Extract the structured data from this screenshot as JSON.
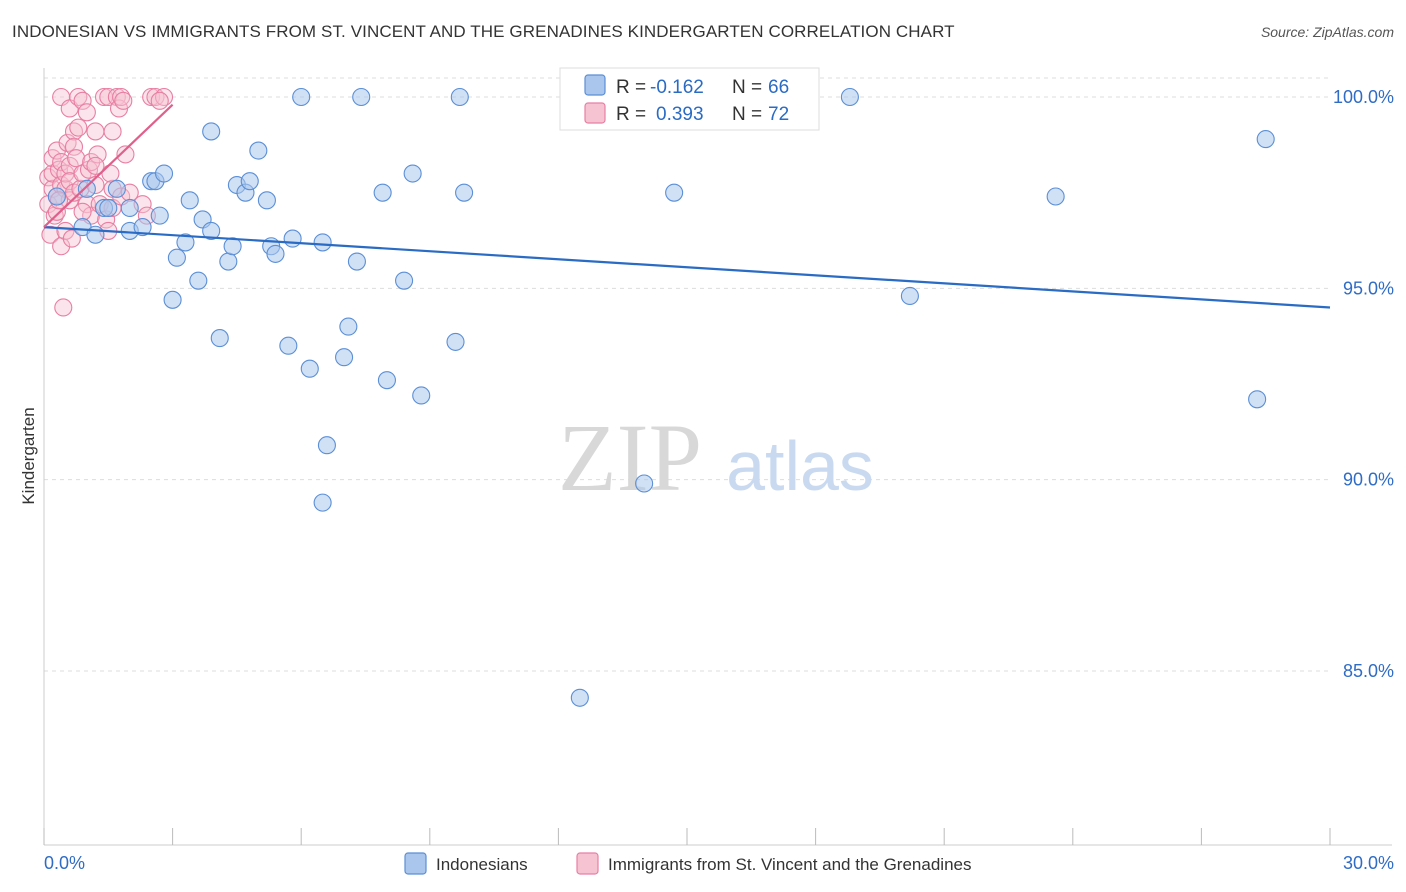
{
  "title": "INDONESIAN VS IMMIGRANTS FROM ST. VINCENT AND THE GRENADINES KINDERGARTEN CORRELATION CHART",
  "source": "Source: ZipAtlas.com",
  "watermark": {
    "zip": "ZIP",
    "atlas": "atlas"
  },
  "colors": {
    "blue": "#5b8fd6",
    "blue_fill": "#aac6ec",
    "blue_line": "#2a6bc4",
    "pink": "#e87fa3",
    "pink_fill": "#f6c3d3",
    "pink_line": "#e0608c",
    "grid": "#dddddd",
    "tick_text": "#2f6cc5"
  },
  "stats": {
    "r_label": "R =",
    "n_label": "N =",
    "rows": [
      {
        "series": "Indonesians",
        "r": "-0.162",
        "n": "66"
      },
      {
        "series": "Immigrants from St. Vincent and the Grenadines",
        "r": "0.393",
        "n": "72"
      }
    ]
  },
  "chart_data": {
    "type": "scatter",
    "title": "INDONESIAN VS IMMIGRANTS FROM ST. VINCENT AND THE GRENADINES KINDERGARTEN CORRELATION CHART",
    "xlabel": "",
    "ylabel": "Kindergarten",
    "xlim": [
      0,
      30
    ],
    "ylim": [
      80.5,
      100.7
    ],
    "x_ticks": [
      0,
      3,
      6,
      9,
      12,
      15,
      18,
      21,
      24,
      27,
      30
    ],
    "x_tick_labels": {
      "0": "0.0%",
      "30": "30.0%"
    },
    "y_ticks": [
      85,
      90,
      95,
      100
    ],
    "y_tick_labels": [
      "85.0%",
      "90.0%",
      "95.0%",
      "100.0%"
    ],
    "grid": true,
    "legend_position": "bottom",
    "series": [
      {
        "name": "Indonesians",
        "color": "#5b8fd6",
        "trend": {
          "x": [
            0,
            30
          ],
          "y": [
            96.6,
            94.5
          ]
        },
        "points": [
          [
            0.3,
            97.4
          ],
          [
            0.9,
            96.6
          ],
          [
            1.0,
            97.6
          ],
          [
            1.2,
            96.4
          ],
          [
            1.4,
            97.1
          ],
          [
            1.5,
            97.1
          ],
          [
            1.7,
            97.6
          ],
          [
            2.0,
            96.5
          ],
          [
            2.0,
            97.1
          ],
          [
            2.3,
            96.6
          ],
          [
            2.5,
            97.8
          ],
          [
            2.6,
            97.8
          ],
          [
            2.7,
            96.9
          ],
          [
            2.8,
            98.0
          ],
          [
            3.0,
            94.7
          ],
          [
            3.1,
            95.8
          ],
          [
            3.3,
            96.2
          ],
          [
            3.4,
            97.3
          ],
          [
            3.6,
            95.2
          ],
          [
            3.7,
            96.8
          ],
          [
            3.9,
            96.5
          ],
          [
            3.9,
            99.1
          ],
          [
            4.1,
            93.7
          ],
          [
            4.3,
            95.7
          ],
          [
            4.4,
            96.1
          ],
          [
            4.5,
            97.7
          ],
          [
            4.7,
            97.5
          ],
          [
            4.8,
            97.8
          ],
          [
            5.0,
            98.6
          ],
          [
            5.2,
            97.3
          ],
          [
            5.3,
            96.1
          ],
          [
            5.4,
            95.9
          ],
          [
            5.7,
            93.5
          ],
          [
            5.8,
            96.3
          ],
          [
            6.0,
            100.0
          ],
          [
            6.2,
            92.9
          ],
          [
            6.5,
            89.4
          ],
          [
            6.5,
            96.2
          ],
          [
            6.6,
            90.9
          ],
          [
            7.0,
            93.2
          ],
          [
            7.1,
            94.0
          ],
          [
            7.3,
            95.7
          ],
          [
            7.4,
            100.0
          ],
          [
            7.9,
            97.5
          ],
          [
            8.0,
            92.6
          ],
          [
            8.4,
            95.2
          ],
          [
            8.6,
            98.0
          ],
          [
            8.8,
            92.2
          ],
          [
            9.6,
            93.6
          ],
          [
            9.7,
            100.0
          ],
          [
            9.8,
            97.5
          ],
          [
            12.5,
            84.3
          ],
          [
            14.0,
            89.9
          ],
          [
            14.7,
            97.5
          ],
          [
            18.8,
            100.0
          ],
          [
            20.2,
            94.8
          ],
          [
            23.6,
            97.4
          ],
          [
            28.3,
            92.1
          ],
          [
            28.5,
            98.9
          ]
        ]
      },
      {
        "name": "Immigrants from St. Vincent and the Grenadines",
        "color": "#e87fa3",
        "trend": {
          "x": [
            0,
            3.0
          ],
          "y": [
            96.6,
            99.8
          ]
        },
        "points": [
          [
            0.1,
            97.2
          ],
          [
            0.1,
            97.9
          ],
          [
            0.15,
            96.4
          ],
          [
            0.2,
            97.6
          ],
          [
            0.2,
            98.0
          ],
          [
            0.2,
            98.4
          ],
          [
            0.25,
            96.9
          ],
          [
            0.3,
            97.4
          ],
          [
            0.3,
            98.6
          ],
          [
            0.3,
            97.0
          ],
          [
            0.35,
            98.1
          ],
          [
            0.4,
            97.7
          ],
          [
            0.4,
            96.1
          ],
          [
            0.4,
            98.3
          ],
          [
            0.4,
            100.0
          ],
          [
            0.45,
            94.5
          ],
          [
            0.5,
            97.6
          ],
          [
            0.5,
            98.0
          ],
          [
            0.5,
            96.5
          ],
          [
            0.55,
            98.8
          ],
          [
            0.6,
            99.7
          ],
          [
            0.6,
            97.3
          ],
          [
            0.6,
            98.2
          ],
          [
            0.6,
            97.8
          ],
          [
            0.7,
            99.1
          ],
          [
            0.7,
            97.5
          ],
          [
            0.7,
            98.7
          ],
          [
            0.75,
            98.4
          ],
          [
            0.8,
            100.0
          ],
          [
            0.8,
            99.2
          ],
          [
            0.85,
            97.6
          ],
          [
            0.9,
            98.0
          ],
          [
            0.9,
            99.9
          ],
          [
            1.0,
            97.2
          ],
          [
            1.0,
            99.6
          ],
          [
            1.05,
            98.1
          ],
          [
            1.1,
            96.9
          ],
          [
            1.1,
            98.3
          ],
          [
            1.2,
            99.1
          ],
          [
            1.2,
            97.7
          ],
          [
            1.25,
            98.5
          ],
          [
            1.3,
            97.2
          ],
          [
            1.4,
            100.0
          ],
          [
            1.45,
            96.8
          ],
          [
            1.5,
            100.0
          ],
          [
            1.5,
            96.5
          ],
          [
            1.6,
            97.6
          ],
          [
            1.6,
            97.1
          ],
          [
            1.6,
            99.1
          ],
          [
            1.7,
            100.0
          ],
          [
            1.75,
            99.7
          ],
          [
            1.8,
            97.4
          ],
          [
            1.8,
            100.0
          ],
          [
            1.9,
            98.5
          ],
          [
            2.0,
            97.5
          ],
          [
            2.3,
            97.2
          ],
          [
            2.4,
            96.9
          ],
          [
            2.5,
            100.0
          ],
          [
            2.6,
            100.0
          ],
          [
            2.8,
            100.0
          ],
          [
            1.2,
            98.2
          ],
          [
            0.9,
            97.0
          ],
          [
            1.55,
            98.0
          ],
          [
            0.65,
            96.3
          ],
          [
            0.35,
            97.3
          ],
          [
            1.85,
            99.9
          ],
          [
            2.7,
            99.9
          ]
        ]
      }
    ]
  }
}
